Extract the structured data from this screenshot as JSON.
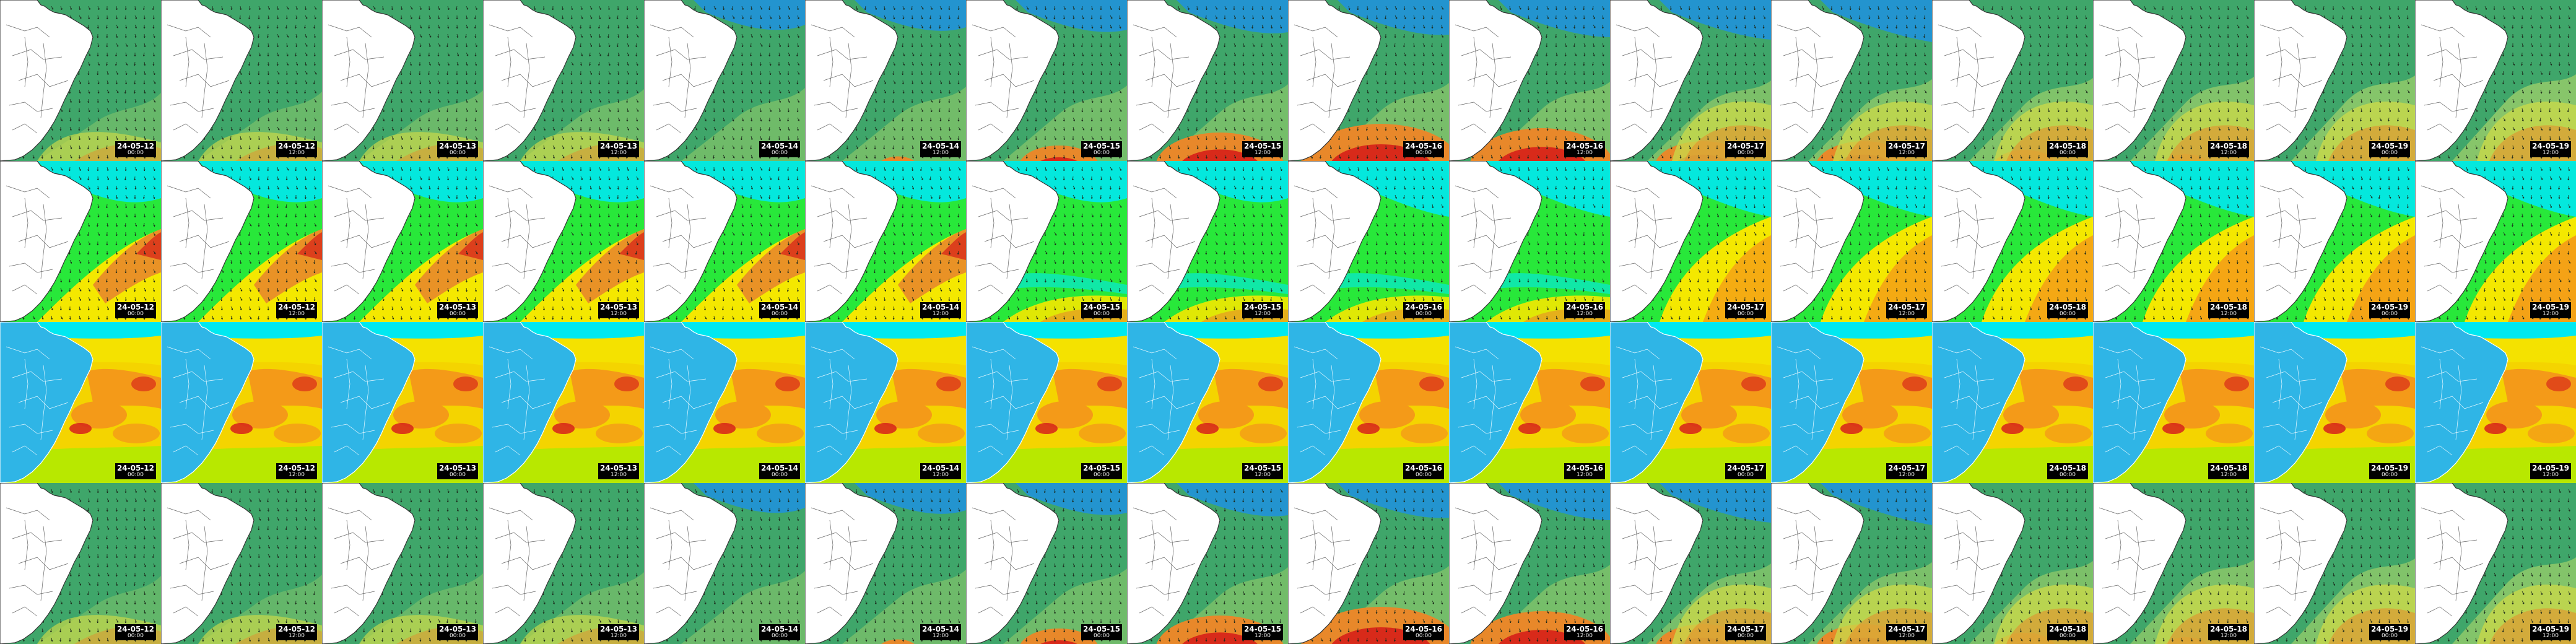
{
  "rows": [
    {
      "id": "row-1",
      "palette": "green",
      "arrows": true,
      "panels": [
        {
          "date": "24-05-12",
          "time": "00:00"
        },
        {
          "date": "24-05-12",
          "time": "12:00"
        },
        {
          "date": "24-05-13",
          "time": "00:00"
        },
        {
          "date": "24-05-13",
          "time": "12:00"
        },
        {
          "date": "24-05-14",
          "time": "00:00"
        },
        {
          "date": "24-05-14",
          "time": "12:00"
        },
        {
          "date": "24-05-15",
          "time": "00:00"
        },
        {
          "date": "24-05-15",
          "time": "12:00"
        },
        {
          "date": "24-05-16",
          "time": "00:00"
        },
        {
          "date": "24-05-16",
          "time": "12:00"
        },
        {
          "date": "24-05-17",
          "time": "00:00"
        },
        {
          "date": "24-05-17",
          "time": "12:00"
        },
        {
          "date": "24-05-18",
          "time": "00:00"
        },
        {
          "date": "24-05-18",
          "time": "12:00"
        },
        {
          "date": "24-05-19",
          "time": "00:00"
        },
        {
          "date": "24-05-19",
          "time": "12:00"
        }
      ]
    },
    {
      "id": "row-2",
      "palette": "bright",
      "arrows": true,
      "panels": [
        {
          "date": "24-05-12",
          "time": "00:00"
        },
        {
          "date": "24-05-12",
          "time": "12:00"
        },
        {
          "date": "24-05-13",
          "time": "00:00"
        },
        {
          "date": "24-05-13",
          "time": "12:00"
        },
        {
          "date": "24-05-14",
          "time": "00:00"
        },
        {
          "date": "24-05-14",
          "time": "12:00"
        },
        {
          "date": "24-05-15",
          "time": "00:00"
        },
        {
          "date": "24-05-15",
          "time": "12:00"
        },
        {
          "date": "24-05-16",
          "time": "00:00"
        },
        {
          "date": "24-05-16",
          "time": "12:00"
        },
        {
          "date": "24-05-17",
          "time": "00:00"
        },
        {
          "date": "24-05-17",
          "time": "12:00"
        },
        {
          "date": "24-05-18",
          "time": "00:00"
        },
        {
          "date": "24-05-18",
          "time": "12:00"
        },
        {
          "date": "24-05-19",
          "time": "00:00"
        },
        {
          "date": "24-05-19",
          "time": "12:00"
        }
      ]
    },
    {
      "id": "row-3",
      "palette": "sst",
      "arrows": false,
      "panels": [
        {
          "date": "24-05-12",
          "time": "00:00"
        },
        {
          "date": "24-05-12",
          "time": "12:00"
        },
        {
          "date": "24-05-13",
          "time": "00:00"
        },
        {
          "date": "24-05-13",
          "time": "12:00"
        },
        {
          "date": "24-05-14",
          "time": "00:00"
        },
        {
          "date": "24-05-14",
          "time": "12:00"
        },
        {
          "date": "24-05-15",
          "time": "00:00"
        },
        {
          "date": "24-05-15",
          "time": "12:00"
        },
        {
          "date": "24-05-16",
          "time": "00:00"
        },
        {
          "date": "24-05-16",
          "time": "12:00"
        },
        {
          "date": "24-05-17",
          "time": "00:00"
        },
        {
          "date": "24-05-17",
          "time": "12:00"
        },
        {
          "date": "24-05-18",
          "time": "00:00"
        },
        {
          "date": "24-05-18",
          "time": "12:00"
        },
        {
          "date": "24-05-19",
          "time": "00:00"
        },
        {
          "date": "24-05-19",
          "time": "12:00"
        }
      ]
    },
    {
      "id": "row-4",
      "palette": "green",
      "arrows": true,
      "panels": [
        {
          "date": "24-05-12",
          "time": "00:00"
        },
        {
          "date": "24-05-12",
          "time": "12:00"
        },
        {
          "date": "24-05-13",
          "time": "00:00"
        },
        {
          "date": "24-05-13",
          "time": "12:00"
        },
        {
          "date": "24-05-14",
          "time": "00:00"
        },
        {
          "date": "24-05-14",
          "time": "12:00"
        },
        {
          "date": "24-05-15",
          "time": "00:00"
        },
        {
          "date": "24-05-15",
          "time": "12:00"
        },
        {
          "date": "24-05-16",
          "time": "00:00"
        },
        {
          "date": "24-05-16",
          "time": "12:00"
        },
        {
          "date": "24-05-17",
          "time": "00:00"
        },
        {
          "date": "24-05-17",
          "time": "12:00"
        },
        {
          "date": "24-05-18",
          "time": "00:00"
        },
        {
          "date": "24-05-18",
          "time": "12:00"
        },
        {
          "date": "24-05-19",
          "time": "00:00"
        },
        {
          "date": "24-05-19",
          "time": "12:00"
        }
      ]
    }
  ],
  "colors": {
    "land": "#ffffff",
    "land_sst": "#2fb5e6",
    "coast_line": "#333333",
    "state_line": "#666666",
    "arrow": "#1c2a1c",
    "stamp_bg": "#000000",
    "stamp_text": "#ffffff",
    "green_base": "#3fa66a",
    "green_light": "#8fc96a",
    "green_yellow": "#c8d84a",
    "orange": "#e8882a",
    "red": "#d82a1a",
    "blue": "#1e90e0",
    "cyan": "#00e8f0",
    "bright_green": "#28e83a",
    "bright_yellow": "#f4e800",
    "sst_orange": "#f49a18",
    "sst_yellow": "#f4d400",
    "sst_lime": "#b8e800"
  }
}
